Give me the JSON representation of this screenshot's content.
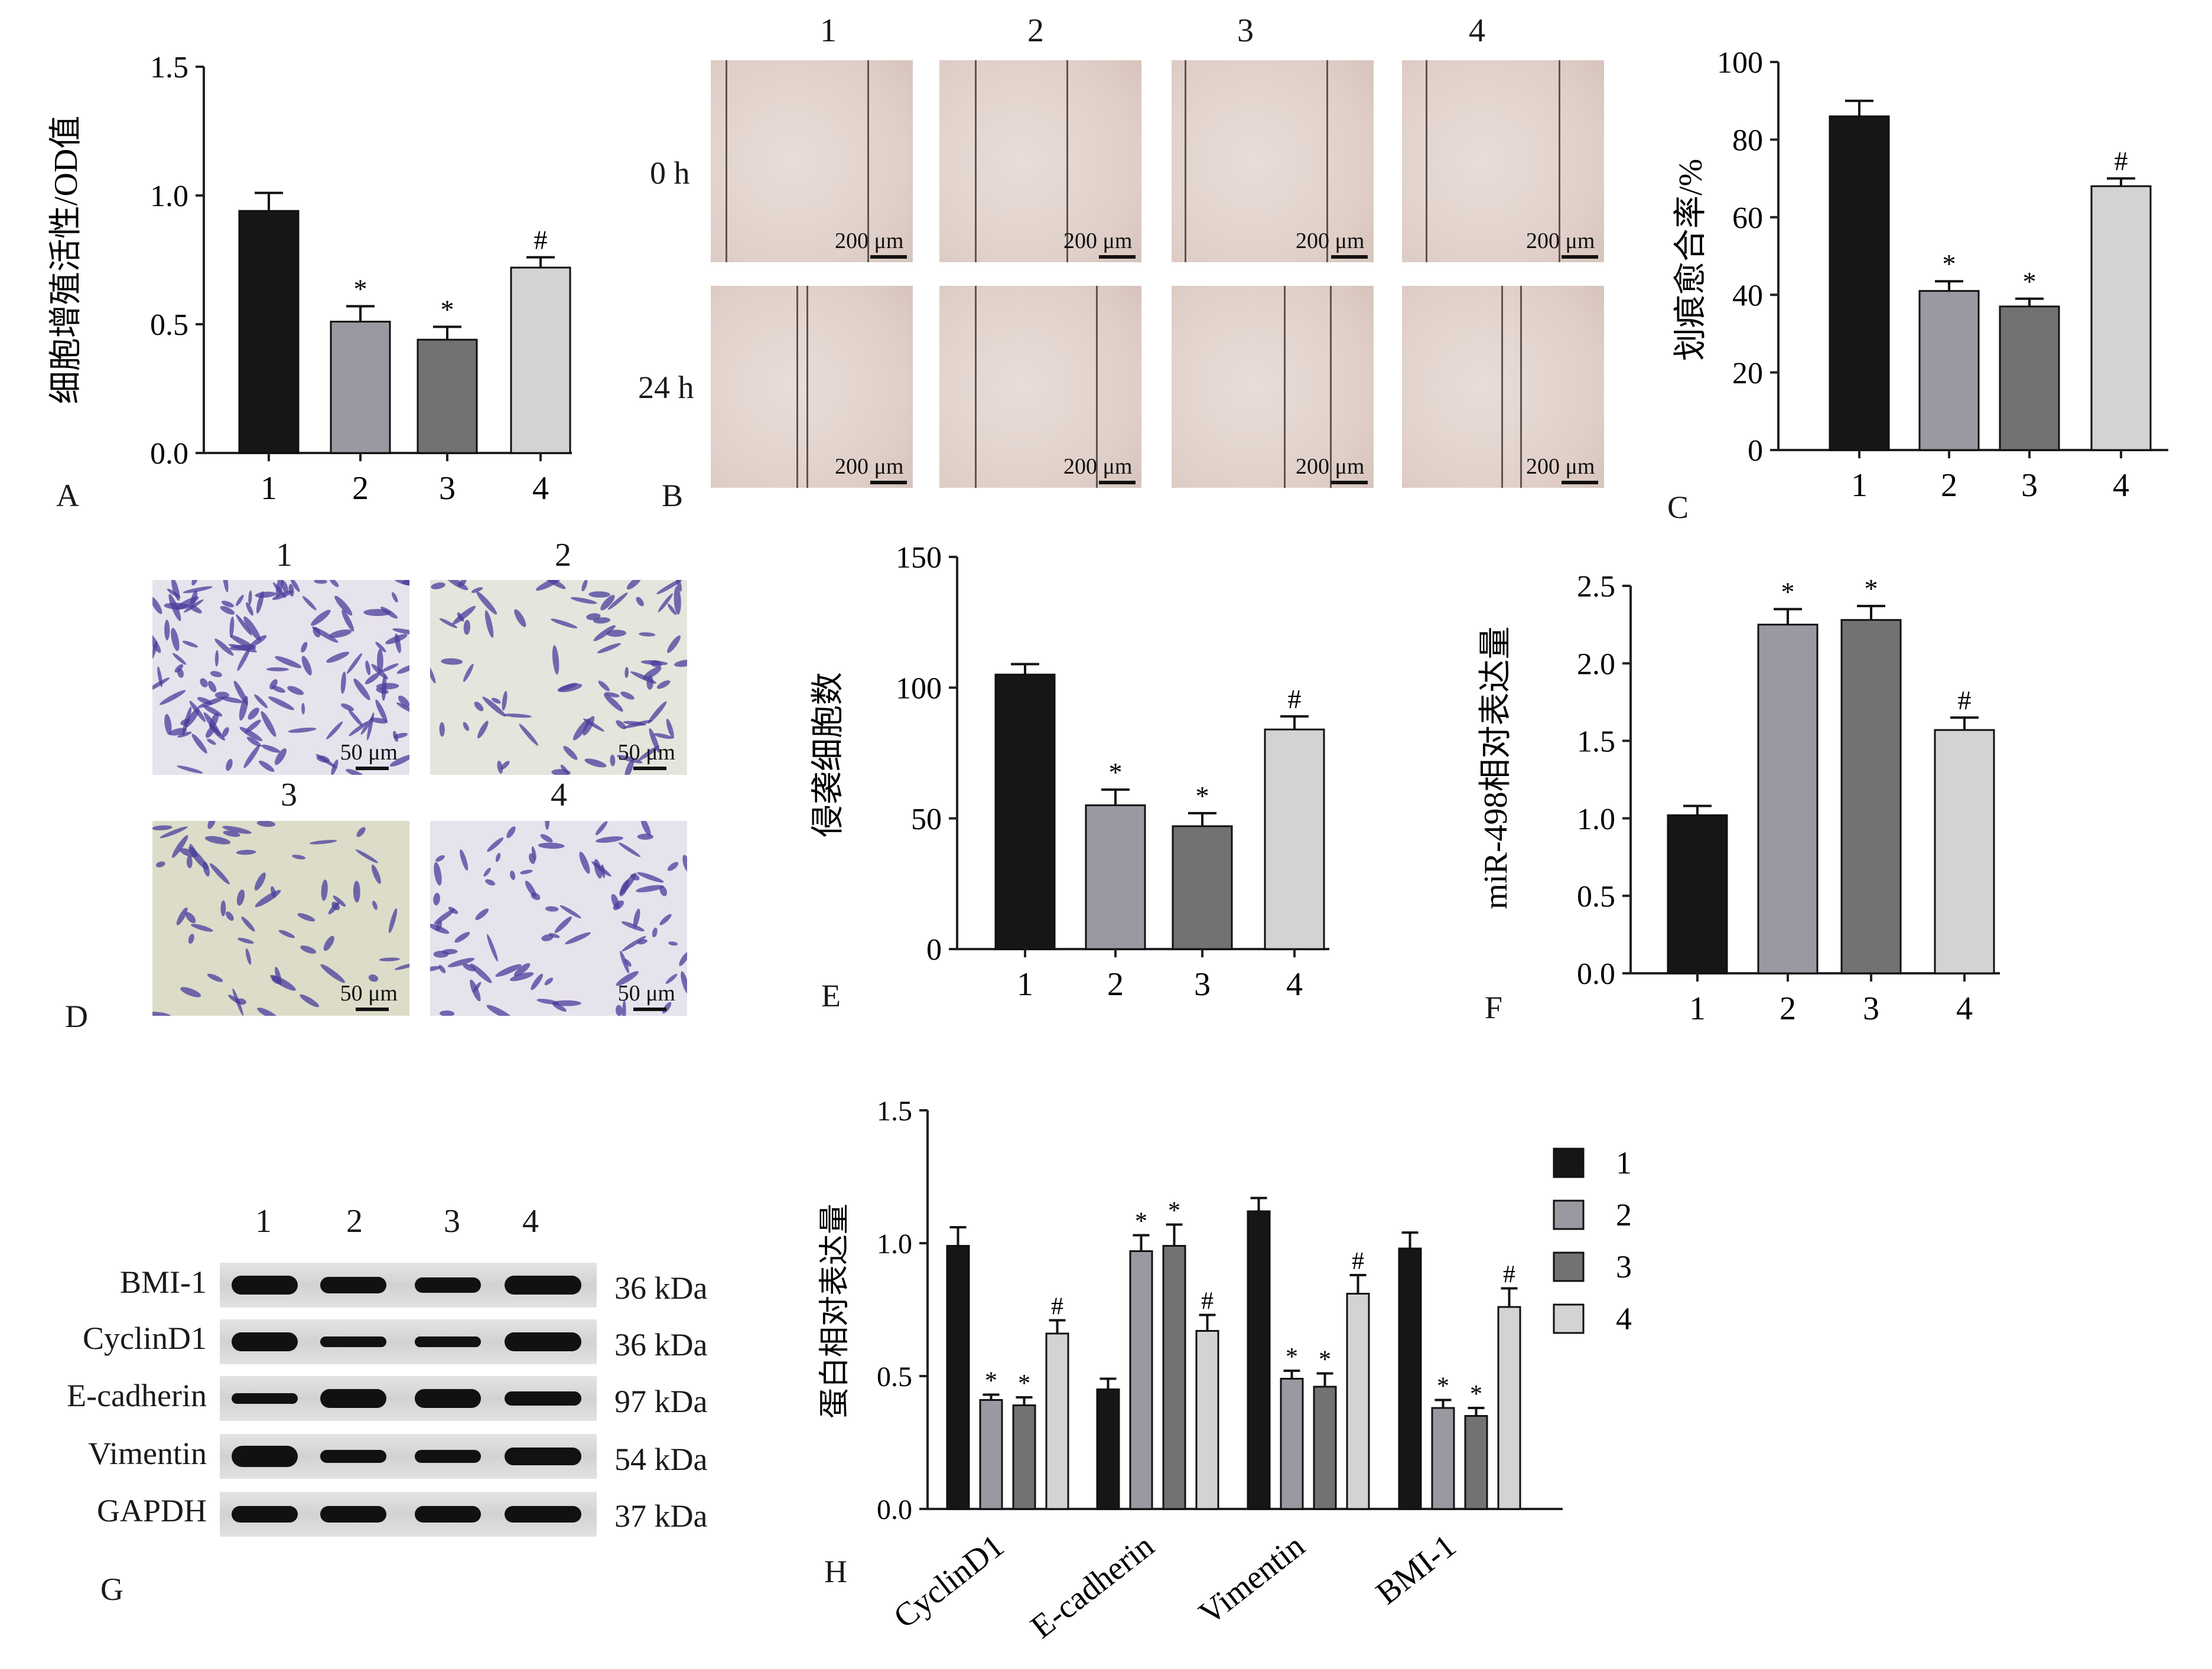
{
  "colors": {
    "g1": "#161616",
    "g2": "#9a99a2",
    "g3": "#727174",
    "g4": "#d5d2d5",
    "well": "#e0cfc8",
    "transwell_bg": "#e7e3ec",
    "stain": "#4a3e9c"
  },
  "panels": {
    "A": {
      "label": "A",
      "ylabel": "细胞增殖活性/OD值"
    },
    "B": {
      "label": "B",
      "cols": [
        "1",
        "2",
        "3",
        "4"
      ],
      "rows": [
        "0 h",
        "24 h"
      ],
      "scale": "200 μm"
    },
    "C": {
      "label": "C",
      "ylabel": "划痕愈合率/%"
    },
    "D": {
      "label": "D",
      "titles": [
        "1",
        "2",
        "3",
        "4"
      ],
      "scale": "50 μm"
    },
    "E": {
      "label": "E",
      "ylabel": "侵袭细胞数"
    },
    "F": {
      "label": "F",
      "ylabel": "miR-498相对表达量"
    },
    "G": {
      "label": "G",
      "lanes": [
        "1",
        "2",
        "3",
        "4"
      ],
      "proteins": [
        "BMI-1",
        "CyclinD1",
        "E-cadherin",
        "Vimentin",
        "GAPDH"
      ],
      "sizes": [
        "36 kDa",
        "36 kDa",
        "97 kDa",
        "54 kDa",
        "37 kDa"
      ]
    },
    "H": {
      "label": "H",
      "ylabel": "蛋白相对表达量",
      "legend": [
        "1",
        "2",
        "3",
        "4"
      ]
    }
  },
  "chart_data": [
    {
      "id": "A",
      "type": "bar",
      "categories": [
        "1",
        "2",
        "3",
        "4"
      ],
      "values": [
        0.94,
        0.51,
        0.44,
        0.72
      ],
      "errors": [
        0.07,
        0.06,
        0.05,
        0.04
      ],
      "marks": [
        "",
        "*",
        "*",
        "#"
      ],
      "ylim": [
        0,
        1.5
      ],
      "yticks": [
        "0.0",
        "0.5",
        "1.0",
        "1.5"
      ],
      "ylabel": "细胞增殖活性/OD值"
    },
    {
      "id": "C",
      "type": "bar",
      "categories": [
        "1",
        "2",
        "3",
        "4"
      ],
      "values": [
        86,
        41,
        37,
        68
      ],
      "errors": [
        4,
        2.5,
        2,
        2
      ],
      "marks": [
        "",
        "*",
        "*",
        "#"
      ],
      "ylim": [
        0,
        100
      ],
      "yticks": [
        "0",
        "20",
        "40",
        "60",
        "80",
        "100"
      ],
      "ylabel": "划痕愈合率/%"
    },
    {
      "id": "E",
      "type": "bar",
      "categories": [
        "1",
        "2",
        "3",
        "4"
      ],
      "values": [
        105,
        55,
        47,
        84
      ],
      "errors": [
        4,
        6,
        5,
        5
      ],
      "marks": [
        "",
        "*",
        "*",
        "#"
      ],
      "ylim": [
        0,
        150
      ],
      "yticks": [
        "0",
        "50",
        "100",
        "150"
      ],
      "ylabel": "侵袭细胞数"
    },
    {
      "id": "F",
      "type": "bar",
      "categories": [
        "1",
        "2",
        "3",
        "4"
      ],
      "values": [
        1.02,
        2.25,
        2.28,
        1.57
      ],
      "errors": [
        0.06,
        0.1,
        0.09,
        0.08
      ],
      "marks": [
        "",
        "*",
        "*",
        "#"
      ],
      "ylim": [
        0,
        2.5
      ],
      "yticks": [
        "0.0",
        "0.5",
        "1.0",
        "1.5",
        "2.0",
        "2.5"
      ],
      "ylabel": "miR-498相对表达量"
    },
    {
      "id": "H",
      "type": "bar",
      "categories": [
        "CyclinD1",
        "E-cadherin",
        "Vimentin",
        "BMI-1"
      ],
      "series": [
        {
          "name": "1",
          "values": [
            0.99,
            0.45,
            1.12,
            0.98
          ],
          "errors": [
            0.07,
            0.04,
            0.05,
            0.06
          ],
          "marks": [
            "",
            "",
            "",
            ""
          ]
        },
        {
          "name": "2",
          "values": [
            0.41,
            0.97,
            0.49,
            0.38
          ],
          "errors": [
            0.02,
            0.06,
            0.03,
            0.03
          ],
          "marks": [
            "*",
            "*",
            "*",
            "*"
          ]
        },
        {
          "name": "3",
          "values": [
            0.39,
            0.99,
            0.46,
            0.35
          ],
          "errors": [
            0.03,
            0.08,
            0.05,
            0.03
          ],
          "marks": [
            "*",
            "*",
            "*",
            "*"
          ]
        },
        {
          "name": "4",
          "values": [
            0.66,
            0.67,
            0.81,
            0.76
          ],
          "errors": [
            0.05,
            0.06,
            0.07,
            0.07
          ],
          "marks": [
            "#",
            "#",
            "#",
            "#"
          ]
        }
      ],
      "ylim": [
        0,
        1.5
      ],
      "yticks": [
        "0.0",
        "0.5",
        "1.0",
        "1.5"
      ],
      "ylabel": "蛋白相对表达量",
      "legend": "right"
    }
  ]
}
